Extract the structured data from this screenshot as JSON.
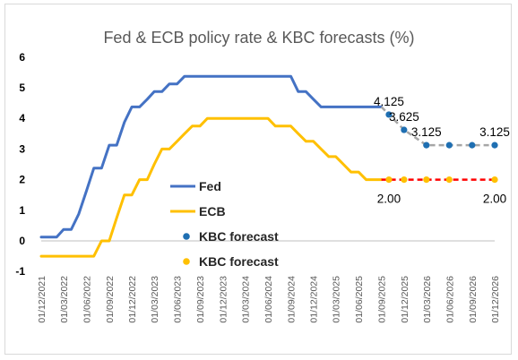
{
  "chart_data": {
    "type": "line",
    "title": "Fed & ECB policy rate & KBC forecasts (%)",
    "xlabel": "",
    "ylabel": "",
    "ylim": [
      -1,
      6
    ],
    "yticks": [
      "-1",
      "0",
      "1",
      "2",
      "3",
      "4",
      "5",
      "6"
    ],
    "x_tick_labels": [
      "01/12/2021",
      "01/03/2022",
      "01/06/2022",
      "01/09/2022",
      "01/12/2022",
      "01/03/2023",
      "01/06/2023",
      "01/09/2023",
      "01/12/2023",
      "01/03/2024",
      "01/06/2024",
      "01/09/2024",
      "01/12/2024",
      "01/03/2025",
      "01/06/2025",
      "01/09/2025",
      "01/12/2025",
      "01/03/2026",
      "01/06/2026",
      "01/09/2026",
      "01/12/2026"
    ],
    "grid": false,
    "legend_placement": "center",
    "legend": [
      {
        "label": "Fed",
        "kind": "line",
        "color": "#4472c4"
      },
      {
        "label": "ECB",
        "kind": "line",
        "color": "#ffc000"
      },
      {
        "label": "KBC forecast",
        "kind": "marker",
        "color": "#1f6fb2"
      },
      {
        "label": "KBC forecast",
        "kind": "marker",
        "color": "#ffc000"
      }
    ],
    "series": [
      {
        "name": "Fed",
        "color": "#4472c4",
        "points": [
          [
            "2021-12-01",
            0.125
          ],
          [
            "2022-02-01",
            0.125
          ],
          [
            "2022-03-01",
            0.375
          ],
          [
            "2022-04-01",
            0.375
          ],
          [
            "2022-05-01",
            0.875
          ],
          [
            "2022-06-01",
            1.625
          ],
          [
            "2022-07-01",
            2.375
          ],
          [
            "2022-08-01",
            2.375
          ],
          [
            "2022-09-01",
            3.125
          ],
          [
            "2022-10-01",
            3.125
          ],
          [
            "2022-11-01",
            3.875
          ],
          [
            "2022-12-01",
            4.375
          ],
          [
            "2023-01-01",
            4.375
          ],
          [
            "2023-02-01",
            4.625
          ],
          [
            "2023-03-01",
            4.875
          ],
          [
            "2023-04-01",
            4.875
          ],
          [
            "2023-05-01",
            5.125
          ],
          [
            "2023-06-01",
            5.125
          ],
          [
            "2023-07-01",
            5.375
          ],
          [
            "2024-09-01",
            5.375
          ],
          [
            "2024-10-01",
            4.875
          ],
          [
            "2024-11-01",
            4.875
          ],
          [
            "2024-12-01",
            4.625
          ],
          [
            "2025-01-01",
            4.375
          ],
          [
            "2025-09-01",
            4.375
          ]
        ]
      },
      {
        "name": "ECB",
        "color": "#ffc000",
        "points": [
          [
            "2021-12-01",
            -0.5
          ],
          [
            "2022-07-01",
            -0.5
          ],
          [
            "2022-08-01",
            0.0
          ],
          [
            "2022-09-01",
            0.0
          ],
          [
            "2022-10-01",
            0.75
          ],
          [
            "2022-11-01",
            1.5
          ],
          [
            "2022-12-01",
            1.5
          ],
          [
            "2023-01-01",
            2.0
          ],
          [
            "2023-02-01",
            2.0
          ],
          [
            "2023-03-01",
            2.5
          ],
          [
            "2023-04-01",
            3.0
          ],
          [
            "2023-05-01",
            3.0
          ],
          [
            "2023-06-01",
            3.25
          ],
          [
            "2023-07-01",
            3.5
          ],
          [
            "2023-08-01",
            3.75
          ],
          [
            "2023-09-01",
            3.75
          ],
          [
            "2023-10-01",
            4.0
          ],
          [
            "2024-06-01",
            4.0
          ],
          [
            "2024-07-01",
            3.75
          ],
          [
            "2024-09-01",
            3.75
          ],
          [
            "2024-10-01",
            3.5
          ],
          [
            "2024-11-01",
            3.25
          ],
          [
            "2024-12-01",
            3.25
          ],
          [
            "2025-01-01",
            3.0
          ],
          [
            "2025-02-01",
            2.75
          ],
          [
            "2025-03-01",
            2.75
          ],
          [
            "2025-04-01",
            2.5
          ],
          [
            "2025-05-01",
            2.25
          ],
          [
            "2025-06-01",
            2.25
          ],
          [
            "2025-07-01",
            2.0
          ],
          [
            "2025-09-01",
            2.0
          ]
        ]
      },
      {
        "name": "KBC forecast",
        "color": "#1f6fb2",
        "connector_color": "#a6a6a6",
        "points": [
          [
            "2025-09-01",
            4.375
          ],
          [
            "2025-10-01",
            4.125
          ],
          [
            "2025-12-01",
            3.625
          ],
          [
            "2026-03-01",
            3.125
          ],
          [
            "2026-06-01",
            3.125
          ],
          [
            "2026-09-01",
            3.125
          ],
          [
            "2026-12-01",
            3.125
          ]
        ]
      },
      {
        "name": "KBC forecast",
        "color": "#ffc000",
        "connector_color": "#ff0000",
        "points": [
          [
            "2025-09-01",
            2.0
          ],
          [
            "2025-10-01",
            2.0
          ],
          [
            "2025-12-01",
            2.0
          ],
          [
            "2026-03-01",
            2.0
          ],
          [
            "2026-06-01",
            2.0
          ],
          [
            "2026-12-01",
            2.0
          ]
        ]
      }
    ],
    "annotations": [
      {
        "text": "4.125",
        "x": "2025-10-01",
        "y": 4.125,
        "pos": "above"
      },
      {
        "text": "3.625",
        "x": "2025-12-01",
        "y": 3.625,
        "pos": "above"
      },
      {
        "text": "3.125",
        "x": "2026-03-01",
        "y": 3.125,
        "pos": "above"
      },
      {
        "text": "3.125",
        "x": "2026-12-01",
        "y": 3.125,
        "pos": "above"
      },
      {
        "text": "2.00",
        "x": "2025-10-01",
        "y": 2.0,
        "pos": "below"
      },
      {
        "text": "2.00",
        "x": "2026-12-01",
        "y": 2.0,
        "pos": "below"
      }
    ]
  }
}
